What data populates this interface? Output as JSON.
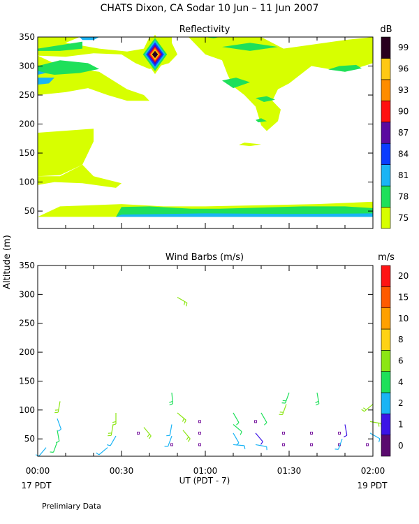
{
  "title": "CHATS Dixon, CA  Sodar   10 Jun – 11 Jun 2007",
  "y_axis_label": "Altitude  (m)",
  "x_axis_label": "UT  (PDT - 7)",
  "date_left": "17 PDT",
  "date_right": "19 PDT",
  "footer_note": "Prelimiary Data",
  "chart_data": [
    {
      "type": "heatmap",
      "title": "Reflectivity",
      "ylabel": "Altitude  (m)",
      "xlabel": "UT  (PDT - 7)",
      "x_ticks": [
        "00:00",
        "00:30",
        "01:00",
        "01:30",
        "02:00"
      ],
      "xlim_minutes": [
        0,
        120
      ],
      "y_ticks": [
        50,
        100,
        150,
        200,
        250,
        300,
        350
      ],
      "ylim": [
        20,
        350
      ],
      "colorbar_unit": "dB",
      "colorbar_levels": [
        75,
        78,
        81,
        84,
        87,
        90,
        93,
        96,
        99
      ],
      "colorbar_colors": [
        "#d7ff00",
        "#1ee05a",
        "#1ab4f5",
        "#0a3cff",
        "#5a0aa0",
        "#ff1010",
        "#ff8c00",
        "#ffc814",
        "#28001e"
      ],
      "hotspot": {
        "minute": 42,
        "altitude_m": 320,
        "peak_db": 99
      },
      "grid": false
    },
    {
      "type": "scatter",
      "title": "Wind Barbs (m/s)",
      "ylabel": "Altitude  (m)",
      "xlabel": "UT  (PDT - 7)",
      "x_ticks": [
        "00:00",
        "00:30",
        "01:00",
        "01:30",
        "02:00"
      ],
      "xlim_minutes": [
        0,
        120
      ],
      "y_ticks": [
        50,
        100,
        150,
        200,
        250,
        300,
        350
      ],
      "ylim": [
        20,
        350
      ],
      "colorbar_unit": "m/s",
      "colorbar_levels": [
        0,
        1,
        2,
        4,
        6,
        8,
        10,
        15,
        20
      ],
      "colorbar_colors": [
        "#5a0a6e",
        "#3c14e6",
        "#1ab4f5",
        "#1ee05a",
        "#8ce614",
        "#ffd214",
        "#ffa000",
        "#ff5a00",
        "#ff1414"
      ],
      "barbs": [
        {
          "t": 3,
          "z": 35,
          "speed": 3,
          "dir": 220
        },
        {
          "t": 7,
          "z": 45,
          "speed": 4,
          "dir": 200
        },
        {
          "t": 7,
          "z": 65,
          "speed": 4,
          "dir": 170
        },
        {
          "t": 7,
          "z": 85,
          "speed": 3,
          "dir": 160
        },
        {
          "t": 8,
          "z": 115,
          "speed": 6,
          "dir": 190
        },
        {
          "t": 25,
          "z": 35,
          "speed": 3,
          "dir": 230
        },
        {
          "t": 28,
          "z": 55,
          "speed": 3,
          "dir": 210
        },
        {
          "t": 27,
          "z": 75,
          "speed": 6,
          "dir": 190
        },
        {
          "t": 28,
          "z": 95,
          "speed": 7,
          "dir": 180
        },
        {
          "t": 38,
          "z": 70,
          "speed": 7,
          "dir": 140
        },
        {
          "t": 36,
          "z": 60,
          "speed": 1,
          "dir": 0,
          "calm": true
        },
        {
          "t": 48,
          "z": 40,
          "speed": 1,
          "dir": 0,
          "calm": true
        },
        {
          "t": 48,
          "z": 55,
          "speed": 3,
          "dir": 200
        },
        {
          "t": 48,
          "z": 75,
          "speed": 3,
          "dir": 190
        },
        {
          "t": 50,
          "z": 95,
          "speed": 6,
          "dir": 130
        },
        {
          "t": 48,
          "z": 130,
          "speed": 5,
          "dir": 175
        },
        {
          "t": 50,
          "z": 295,
          "speed": 7,
          "dir": 120
        },
        {
          "t": 52,
          "z": 65,
          "speed": 6,
          "dir": 140
        },
        {
          "t": 58,
          "z": 40,
          "speed": 1,
          "dir": 0,
          "calm": true
        },
        {
          "t": 58,
          "z": 60,
          "speed": 1,
          "dir": 0,
          "calm": true
        },
        {
          "t": 58,
          "z": 80,
          "speed": 1,
          "dir": 0,
          "calm": true
        },
        {
          "t": 70,
          "z": 40,
          "speed": 2,
          "dir": 95
        },
        {
          "t": 70,
          "z": 60,
          "speed": 3,
          "dir": 150
        },
        {
          "t": 70,
          "z": 75,
          "speed": 4,
          "dir": 130
        },
        {
          "t": 70,
          "z": 95,
          "speed": 4,
          "dir": 150
        },
        {
          "t": 78,
          "z": 40,
          "speed": 2,
          "dir": 100
        },
        {
          "t": 78,
          "z": 60,
          "speed": 1,
          "dir": 140
        },
        {
          "t": 78,
          "z": 80,
          "speed": 1,
          "dir": 0,
          "calm": true
        },
        {
          "t": 80,
          "z": 95,
          "speed": 4,
          "dir": 150
        },
        {
          "t": 88,
          "z": 40,
          "speed": 1,
          "dir": 0,
          "calm": true
        },
        {
          "t": 88,
          "z": 60,
          "speed": 1,
          "dir": 0,
          "calm": true
        },
        {
          "t": 89,
          "z": 110,
          "speed": 6,
          "dir": 200
        },
        {
          "t": 90,
          "z": 130,
          "speed": 5,
          "dir": 200
        },
        {
          "t": 98,
          "z": 40,
          "speed": 1,
          "dir": 0,
          "calm": true
        },
        {
          "t": 98,
          "z": 60,
          "speed": 1,
          "dir": 0,
          "calm": true
        },
        {
          "t": 100,
          "z": 130,
          "speed": 5,
          "dir": 170
        },
        {
          "t": 108,
          "z": 40,
          "speed": 1,
          "dir": 0,
          "calm": true
        },
        {
          "t": 108,
          "z": 60,
          "speed": 1,
          "dir": 0,
          "calm": true
        },
        {
          "t": 109,
          "z": 50,
          "speed": 2,
          "dir": 200
        },
        {
          "t": 110,
          "z": 75,
          "speed": 1,
          "dir": 170
        },
        {
          "t": 118,
          "z": 40,
          "speed": 1,
          "dir": 0,
          "calm": true
        },
        {
          "t": 119,
          "z": 60,
          "speed": 2,
          "dir": 120
        },
        {
          "t": 119,
          "z": 80,
          "speed": 6,
          "dir": 100
        },
        {
          "t": 120,
          "z": 110,
          "speed": 6,
          "dir": 230
        }
      ],
      "grid": false
    }
  ]
}
